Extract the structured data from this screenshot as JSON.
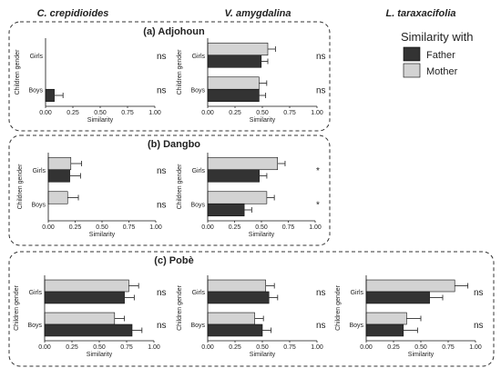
{
  "species_headers": [
    "C. crepidioides",
    "V. amygdalina",
    "L. taraxacifolia"
  ],
  "legend": {
    "title": "Similarity with",
    "items": [
      {
        "label": "Father",
        "color": "#333333"
      },
      {
        "label": "Mother",
        "color": "#d3d3d3"
      }
    ]
  },
  "colors": {
    "father": "#333333",
    "mother": "#d3d3d3",
    "panel_border": "#333333",
    "error_bar": "#333333"
  },
  "chart_data": {
    "type": "bar",
    "orientation": "horizontal",
    "xlabel": "Similarity",
    "ylabel": "Children gender",
    "xlim": [
      0,
      1
    ],
    "xticks": [
      "0.00",
      "0.25",
      "0.50",
      "0.75",
      "1.00"
    ],
    "categories": [
      "Girls",
      "Boys"
    ],
    "series_names": [
      "Father",
      "Mother"
    ],
    "sites": [
      {
        "title": "(a) Adjohoun",
        "charts": [
          {
            "species": "C. crepidioides",
            "groups": [
              {
                "category": "Girls",
                "father": {
                  "value": 0.0,
                  "err": 0.0
                },
                "mother": {
                  "value": 0.0,
                  "err": 0.0
                },
                "sig": "ns"
              },
              {
                "category": "Boys",
                "father": {
                  "value": 0.08,
                  "err": 0.08
                },
                "mother": {
                  "value": 0.0,
                  "err": 0.0
                },
                "sig": "ns"
              }
            ]
          },
          {
            "species": "V. amygdalina",
            "groups": [
              {
                "category": "Girls",
                "father": {
                  "value": 0.49,
                  "err": 0.06
                },
                "mother": {
                  "value": 0.55,
                  "err": 0.07
                },
                "sig": "ns"
              },
              {
                "category": "Boys",
                "father": {
                  "value": 0.47,
                  "err": 0.06
                },
                "mother": {
                  "value": 0.47,
                  "err": 0.07
                },
                "sig": "ns"
              }
            ]
          }
        ]
      },
      {
        "title": "(b) Dangbo",
        "charts": [
          {
            "species": "C. crepidioides",
            "groups": [
              {
                "category": "Girls",
                "father": {
                  "value": 0.2,
                  "err": 0.1
                },
                "mother": {
                  "value": 0.21,
                  "err": 0.1
                },
                "sig": "ns"
              },
              {
                "category": "Boys",
                "father": {
                  "value": 0.0,
                  "err": 0.0
                },
                "mother": {
                  "value": 0.18,
                  "err": 0.1
                },
                "sig": "ns"
              }
            ]
          },
          {
            "species": "V. amygdalina",
            "groups": [
              {
                "category": "Girls",
                "father": {
                  "value": 0.48,
                  "err": 0.07
                },
                "mother": {
                  "value": 0.65,
                  "err": 0.07
                },
                "sig": "*"
              },
              {
                "category": "Boys",
                "father": {
                  "value": 0.34,
                  "err": 0.07
                },
                "mother": {
                  "value": 0.55,
                  "err": 0.07
                },
                "sig": "*"
              }
            ]
          }
        ]
      },
      {
        "title": "(c) Pobè",
        "charts": [
          {
            "species": "C. crepidioides",
            "groups": [
              {
                "category": "Girls",
                "father": {
                  "value": 0.73,
                  "err": 0.09
                },
                "mother": {
                  "value": 0.77,
                  "err": 0.09
                },
                "sig": "ns"
              },
              {
                "category": "Boys",
                "father": {
                  "value": 0.8,
                  "err": 0.09
                },
                "mother": {
                  "value": 0.64,
                  "err": 0.09
                },
                "sig": "ns"
              }
            ]
          },
          {
            "species": "V. amygdalina",
            "groups": [
              {
                "category": "Girls",
                "father": {
                  "value": 0.56,
                  "err": 0.08
                },
                "mother": {
                  "value": 0.53,
                  "err": 0.08
                },
                "sig": "ns"
              },
              {
                "category": "Boys",
                "father": {
                  "value": 0.5,
                  "err": 0.08
                },
                "mother": {
                  "value": 0.43,
                  "err": 0.08
                },
                "sig": "ns"
              }
            ]
          },
          {
            "species": "L. taraxacifolia",
            "groups": [
              {
                "category": "Girls",
                "father": {
                  "value": 0.58,
                  "err": 0.12
                },
                "mother": {
                  "value": 0.81,
                  "err": 0.12
                },
                "sig": "ns"
              },
              {
                "category": "Boys",
                "father": {
                  "value": 0.34,
                  "err": 0.13
                },
                "mother": {
                  "value": 0.37,
                  "err": 0.13
                },
                "sig": "ns"
              }
            ]
          }
        ]
      }
    ]
  }
}
